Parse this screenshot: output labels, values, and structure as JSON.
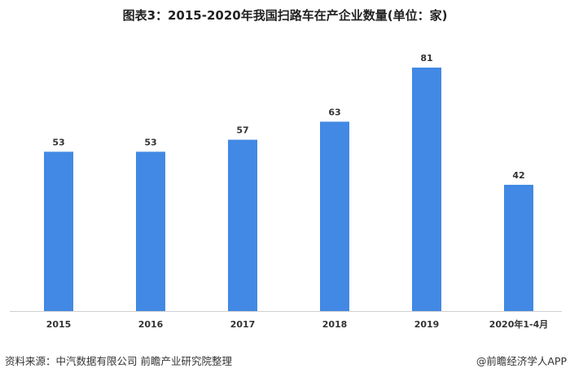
{
  "chart_data": {
    "type": "bar",
    "title": "图表3：2015-2020年我国扫路车在产企业数量(单位：家)",
    "categories": [
      "2015",
      "2016",
      "2017",
      "2018",
      "2019",
      "2020年1-4月"
    ],
    "values": [
      53,
      53,
      57,
      63,
      81,
      42
    ],
    "xlabel": "",
    "ylabel": "",
    "ylim": [
      0,
      81
    ],
    "grid": false,
    "bar_color": "#4189e4"
  },
  "footer": {
    "source": "资料来源：中汽数据有限公司 前瞻产业研究院整理",
    "credit": "@前瞻经济学人APP"
  }
}
